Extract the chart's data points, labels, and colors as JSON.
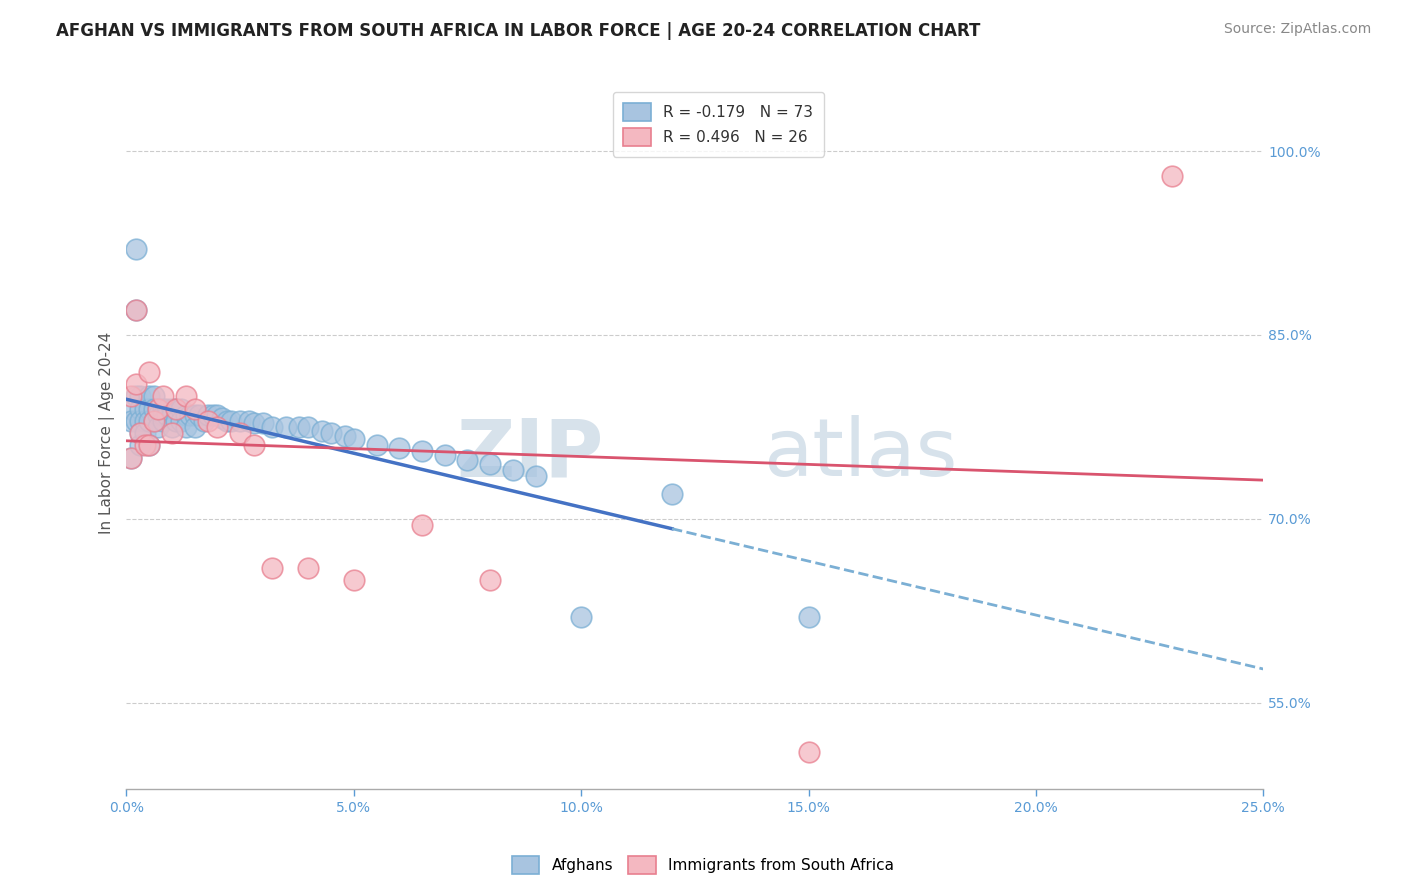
{
  "title": "AFGHAN VS IMMIGRANTS FROM SOUTH AFRICA IN LABOR FORCE | AGE 20-24 CORRELATION CHART",
  "source": "Source: ZipAtlas.com",
  "ylabel": "In Labor Force | Age 20-24",
  "legend_afghans": "Afghans",
  "legend_south_africa": "Immigrants from South Africa",
  "r_afghans": -0.179,
  "n_afghans": 73,
  "r_south_africa": 0.496,
  "n_south_africa": 26,
  "afghan_color": "#a8c4e0",
  "afghan_edge": "#7bafd4",
  "south_africa_color": "#f4b8c1",
  "south_africa_edge": "#e87f8f",
  "afghan_line_color": "#4472c4",
  "afghan_line_dashed_color": "#7bafd4",
  "south_africa_line_color": "#d9546e",
  "background_color": "#ffffff",
  "xlim": [
    0.0,
    0.25
  ],
  "ylim": [
    0.48,
    1.06
  ],
  "xaxis_ticks": [
    0.0,
    0.05,
    0.1,
    0.15,
    0.2,
    0.25
  ],
  "yaxis_ticks": [
    0.55,
    0.7,
    0.85,
    1.0
  ],
  "afghans_x": [
    0.001,
    0.001,
    0.001,
    0.002,
    0.002,
    0.002,
    0.002,
    0.003,
    0.003,
    0.003,
    0.003,
    0.003,
    0.004,
    0.004,
    0.004,
    0.005,
    0.005,
    0.005,
    0.005,
    0.006,
    0.006,
    0.006,
    0.007,
    0.007,
    0.007,
    0.008,
    0.008,
    0.008,
    0.009,
    0.009,
    0.01,
    0.01,
    0.01,
    0.011,
    0.011,
    0.012,
    0.012,
    0.013,
    0.013,
    0.014,
    0.015,
    0.015,
    0.016,
    0.017,
    0.018,
    0.019,
    0.02,
    0.021,
    0.022,
    0.023,
    0.025,
    0.027,
    0.028,
    0.03,
    0.032,
    0.035,
    0.038,
    0.04,
    0.043,
    0.045,
    0.048,
    0.05,
    0.055,
    0.06,
    0.065,
    0.07,
    0.075,
    0.08,
    0.085,
    0.09,
    0.1,
    0.12,
    0.15
  ],
  "afghans_y": [
    0.79,
    0.78,
    0.75,
    0.92,
    0.87,
    0.8,
    0.78,
    0.8,
    0.79,
    0.78,
    0.77,
    0.76,
    0.79,
    0.78,
    0.77,
    0.8,
    0.79,
    0.78,
    0.76,
    0.8,
    0.79,
    0.78,
    0.79,
    0.785,
    0.775,
    0.79,
    0.785,
    0.78,
    0.79,
    0.785,
    0.79,
    0.785,
    0.775,
    0.79,
    0.78,
    0.79,
    0.78,
    0.785,
    0.775,
    0.785,
    0.785,
    0.775,
    0.785,
    0.78,
    0.785,
    0.785,
    0.785,
    0.782,
    0.78,
    0.78,
    0.78,
    0.78,
    0.778,
    0.778,
    0.775,
    0.775,
    0.775,
    0.775,
    0.772,
    0.77,
    0.768,
    0.765,
    0.76,
    0.758,
    0.755,
    0.752,
    0.748,
    0.745,
    0.74,
    0.735,
    0.62,
    0.72,
    0.62
  ],
  "south_africa_x": [
    0.001,
    0.001,
    0.002,
    0.002,
    0.003,
    0.004,
    0.005,
    0.005,
    0.006,
    0.007,
    0.008,
    0.01,
    0.011,
    0.013,
    0.015,
    0.018,
    0.02,
    0.025,
    0.028,
    0.032,
    0.04,
    0.05,
    0.065,
    0.08,
    0.15,
    0.23
  ],
  "south_africa_y": [
    0.8,
    0.75,
    0.87,
    0.81,
    0.77,
    0.76,
    0.82,
    0.76,
    0.78,
    0.79,
    0.8,
    0.77,
    0.79,
    0.8,
    0.79,
    0.78,
    0.775,
    0.77,
    0.76,
    0.66,
    0.66,
    0.65,
    0.695,
    0.65,
    0.51,
    0.98
  ],
  "watermark_zip": "ZIP",
  "watermark_atlas": "atlas",
  "title_fontsize": 12,
  "axis_label_fontsize": 11,
  "tick_fontsize": 10,
  "legend_fontsize": 11,
  "source_fontsize": 10,
  "solid_line_end_x": 0.12,
  "sa_line_extends_x": 0.25
}
